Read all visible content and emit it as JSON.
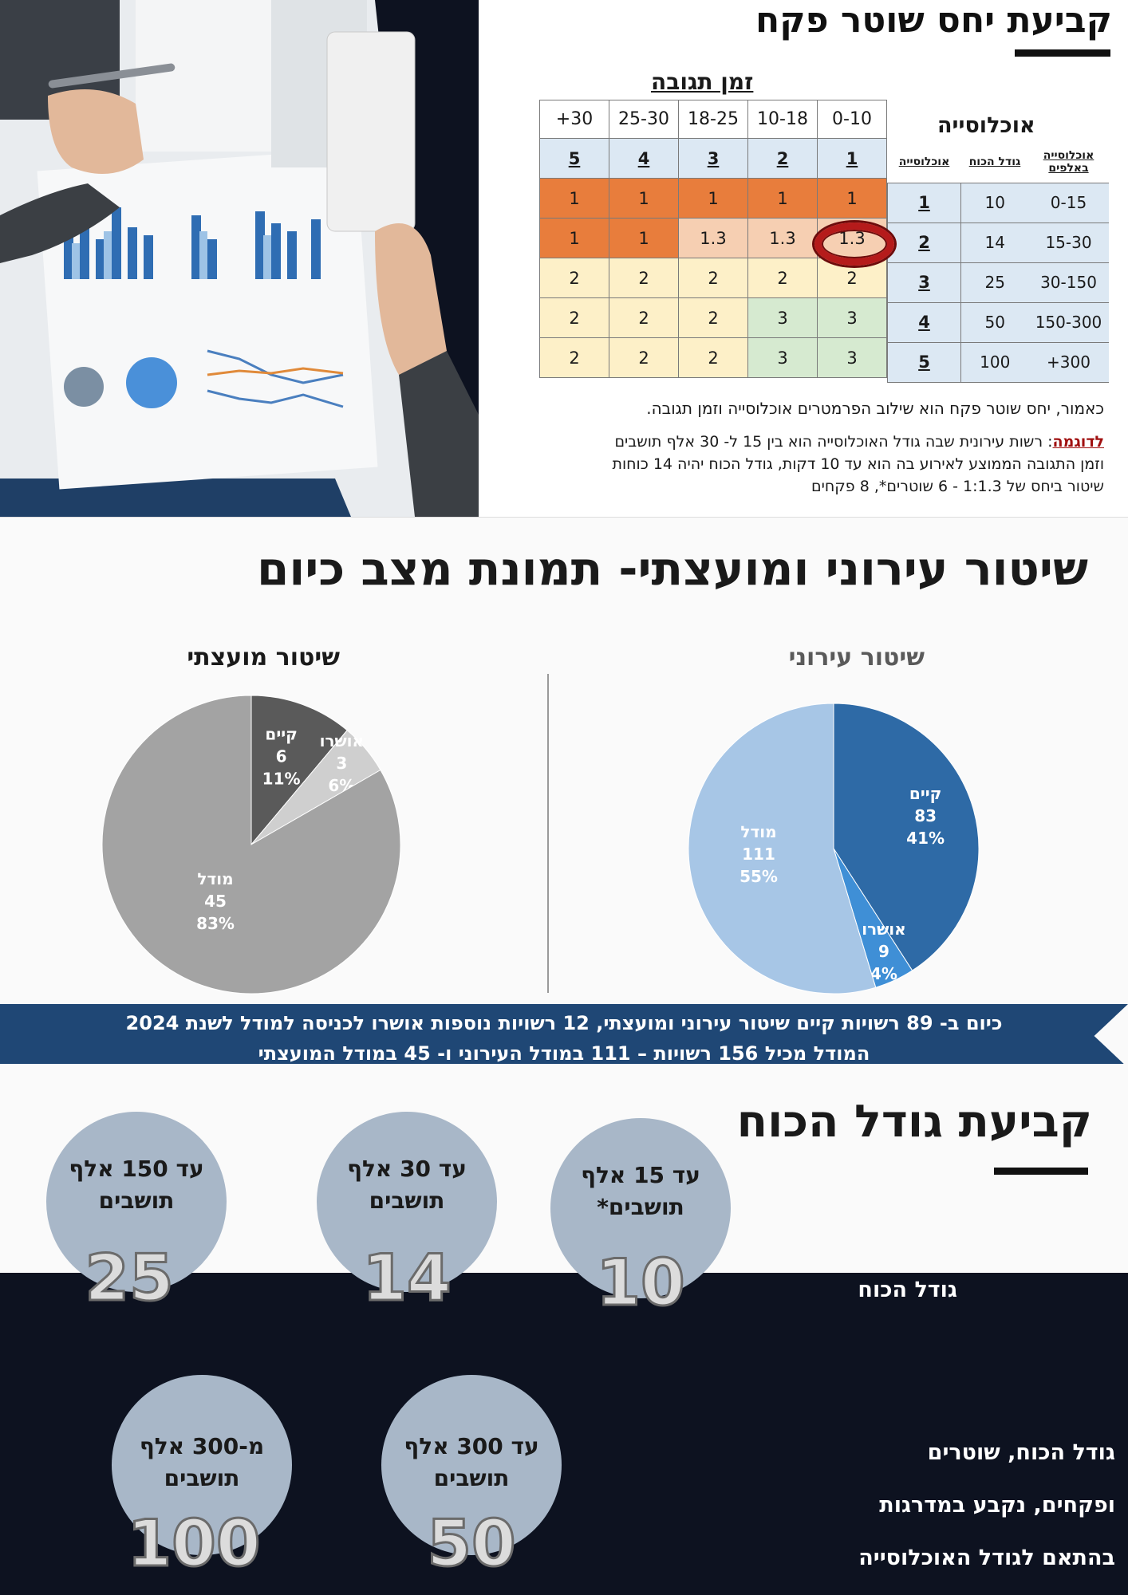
{
  "slide1": {
    "title": "קביעת יחס שוטר פקח",
    "response_time_label": "זמן תגובה",
    "population_label": "אוכלוסייה",
    "column_headers": [
      "0-10",
      "10-18",
      "18-25",
      "25-30",
      "+30"
    ],
    "column_levels": [
      "1",
      "2",
      "3",
      "4",
      "5"
    ],
    "side_headers": {
      "population_thousands": "אוכלוסייה באלפים",
      "force_size": "גודל הכוח",
      "population": "אוכלוסייה"
    },
    "rows": [
      {
        "level": "1",
        "force": "10",
        "range": "0-15",
        "values": [
          "1",
          "1",
          "1",
          "1",
          "1"
        ]
      },
      {
        "level": "2",
        "force": "14",
        "range": "15-30",
        "values": [
          "1.3",
          "1.3",
          "1.3",
          "1",
          "1"
        ]
      },
      {
        "level": "3",
        "force": "25",
        "range": "30-150",
        "values": [
          "2",
          "2",
          "2",
          "2",
          "2"
        ]
      },
      {
        "level": "4",
        "force": "50",
        "range": "150-300",
        "values": [
          "3",
          "3",
          "2",
          "2",
          "2"
        ]
      },
      {
        "level": "5",
        "force": "100",
        "range": "+300",
        "values": [
          "3",
          "3",
          "2",
          "2",
          "2"
        ]
      }
    ],
    "note_line": "כאמור, יחס שוטר פקח הוא שילוב הפרמטרים אוכלוסייה וזמן תגובה.",
    "example_label": "לדוגמה",
    "example_line1": ": רשות עירונית שבה גודל האוכלוסייה הוא בין 15 ל- 30 אלף תושבים",
    "example_line2": "וזמן התגובה הממוצע לאירוע בה הוא עד 10 דקות, גודל הכוח יהיה 14 כוחות",
    "example_line3": "שיטור ביחס של 1:1.3 - 6 שוטרים*, 8 פקחים",
    "colors": {
      "orange": "#e87d3c",
      "peach": "#f6cfb2",
      "yellow": "#fdf0c8",
      "green": "#d6ead0",
      "blue_header": "#dce8f3",
      "marker": "#b51b1b"
    }
  },
  "slide2": {
    "title": "שיטור עירוני ומועצתי- תמונת מצב כיום",
    "city_title": "שיטור עירוני",
    "council_title": "שיטור מועצתי",
    "banner_line1": "כיום ב- 89 רשויות קיים שיטור עירוני ומועצתי, 12 רשויות נוספות אושרו לכניסה למודל לשנת 2024",
    "banner_line2": "המודל מכיל 156 רשויות – 111 במודל העירוני ו- 45 במודל המועצתי"
  },
  "chart_data": [
    {
      "type": "pie",
      "title": "שיטור עירוני",
      "slices": [
        {
          "label": "קיים",
          "value": 83,
          "percent": "41%",
          "color": "#2e6aa6"
        },
        {
          "label": "אושרו",
          "value": 9,
          "percent": "4%",
          "color": "#3f8fd6"
        },
        {
          "label": "מודל",
          "value": 111,
          "percent": "55%",
          "color": "#a7c6e6"
        }
      ]
    },
    {
      "type": "pie",
      "title": "שיטור מועצתי",
      "slices": [
        {
          "label": "קיים",
          "value": 6,
          "percent": "11%",
          "color": "#5a5a5a"
        },
        {
          "label": "אושרו",
          "value": 3,
          "percent": "6%",
          "color": "#cfcfcf"
        },
        {
          "label": "מודל",
          "value": 45,
          "percent": "83%",
          "color": "#a3a3a3"
        }
      ]
    }
  ],
  "slide3": {
    "title": "קביעת גודל הכוח",
    "force_label": "גודל הכוח",
    "bubbles": [
      {
        "line1": "עד 15 אלף",
        "line2": "תושבים*",
        "number": "10"
      },
      {
        "line1": "עד 30 אלף",
        "line2": "תושבים",
        "number": "14"
      },
      {
        "line1": "עד 150 אלף",
        "line2": "תושבים",
        "number": "25"
      },
      {
        "line1": "עד 300 אלף",
        "line2": "תושבים",
        "number": "50"
      },
      {
        "line1": "מ-300 אלף",
        "line2": "תושבים",
        "number": "100"
      }
    ],
    "description": [
      "גודל הכוח, שוטרים",
      "ופקחים, נקבע במדרגות",
      "בהתאם לגודל האוכלוסייה"
    ]
  }
}
